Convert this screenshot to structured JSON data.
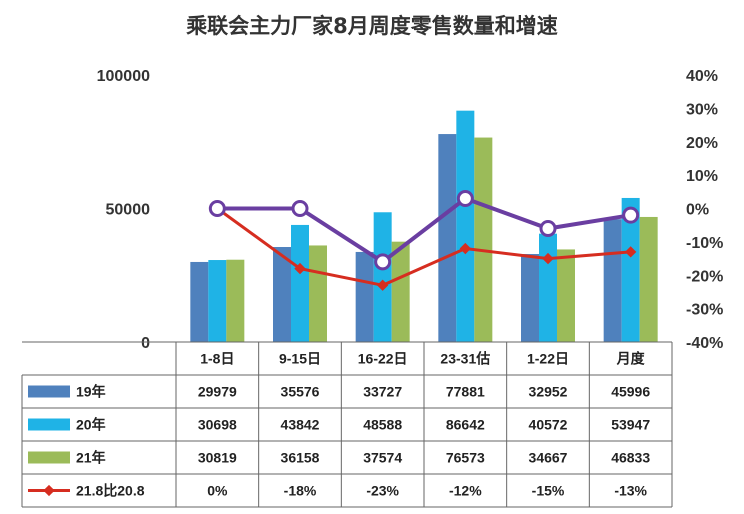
{
  "chart_data": {
    "type": "bar",
    "title": "乘联会主力厂家8月周度零售数量和增速",
    "categories": [
      "1-8日",
      "9-15日",
      "16-22日",
      "23-31估",
      "1-22日",
      "月度"
    ],
    "ylim": [
      0,
      100000
    ],
    "yticks": [
      0,
      50000,
      100000
    ],
    "y2lim": [
      -40,
      40
    ],
    "y2ticks": [
      "40%",
      "30%",
      "20%",
      "10%",
      "0%",
      "-10%",
      "-20%",
      "-30%",
      "-40%"
    ],
    "series": [
      {
        "name": "19年",
        "type": "bar",
        "color": "#4f81bd",
        "values": [
          29979,
          35576,
          33727,
          77881,
          32952,
          45996
        ]
      },
      {
        "name": "20年",
        "type": "bar",
        "color": "#1fb3e6",
        "values": [
          30698,
          43842,
          48588,
          86642,
          40572,
          53947
        ]
      },
      {
        "name": "21年",
        "type": "bar",
        "color": "#9bbb59",
        "values": [
          30819,
          36158,
          37574,
          76573,
          34667,
          46833
        ]
      },
      {
        "name": "21.8比20.8",
        "type": "line",
        "axis": "right",
        "color": "#d62d20",
        "values": [
          0,
          -18,
          -23,
          -12,
          -15,
          -13
        ],
        "labels": [
          "0%",
          "-18%",
          "-23%",
          "-12%",
          "-15%",
          "-13%"
        ]
      },
      {
        "type": "line",
        "axis": "right",
        "color": "#6a3ea1",
        "values": [
          0,
          0,
          -16,
          3,
          -6,
          -2
        ]
      }
    ]
  }
}
